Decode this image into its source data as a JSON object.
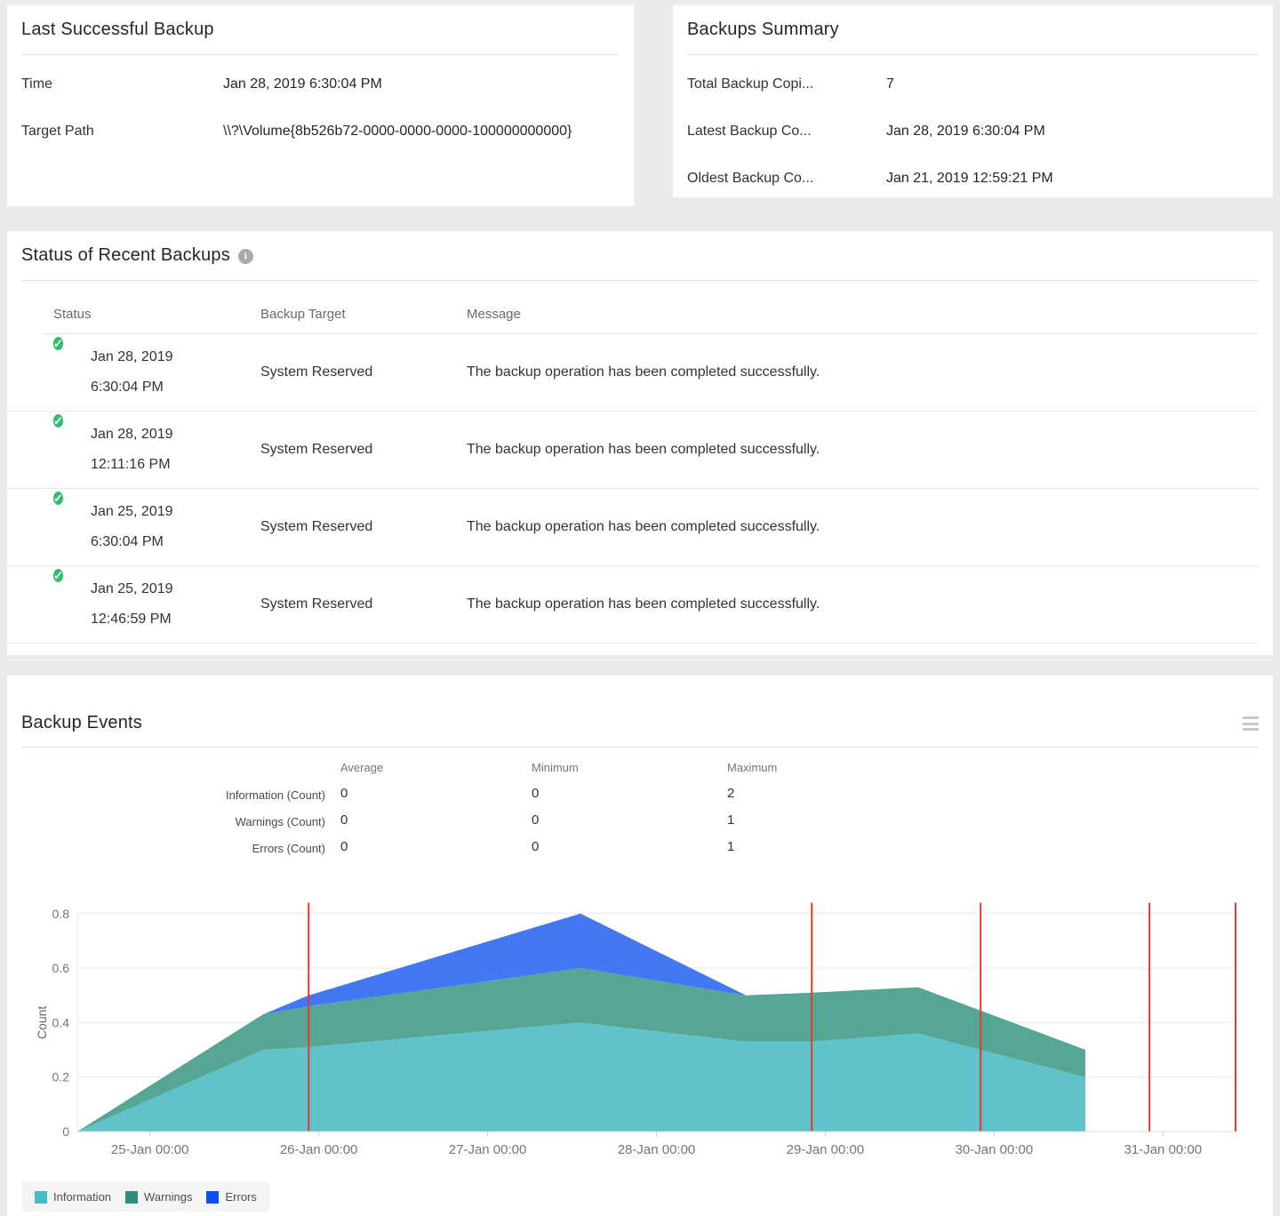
{
  "last_successful_backup": {
    "title": "Last Successful Backup",
    "rows": [
      {
        "label": "Time",
        "value": "Jan 28, 2019 6:30:04 PM"
      },
      {
        "label": "Target Path",
        "value": "\\\\?\\Volume{8b526b72-0000-0000-0000-100000000000}"
      }
    ]
  },
  "backups_summary": {
    "title": "Backups Summary",
    "rows": [
      {
        "label": "Total Backup Copi...",
        "value": "7"
      },
      {
        "label": "Latest Backup Co...",
        "value": "Jan 28, 2019 6:30:04 PM"
      },
      {
        "label": "Oldest Backup Co...",
        "value": "Jan 21, 2019 12:59:21 PM"
      }
    ]
  },
  "status_of_recent_backups": {
    "title": "Status of Recent Backups",
    "info_icon": "i",
    "columns": {
      "status": "Status",
      "target": "Backup Target",
      "message": "Message"
    },
    "check_icon": "✓",
    "rows": [
      {
        "status": "success",
        "date": "Jan 28, 2019",
        "time": "6:30:04 PM",
        "target": "System Reserved",
        "message": "The backup operation has been completed successfully."
      },
      {
        "status": "success",
        "date": "Jan 28, 2019",
        "time": "12:11:16 PM",
        "target": "System Reserved",
        "message": "The backup operation has been completed successfully."
      },
      {
        "status": "success",
        "date": "Jan 25, 2019",
        "time": "6:30:04 PM",
        "target": "System Reserved",
        "message": "The backup operation has been completed successfully."
      },
      {
        "status": "success",
        "date": "Jan 25, 2019",
        "time": "12:46:59 PM",
        "target": "System Reserved",
        "message": "The backup operation has been completed successfully."
      }
    ]
  },
  "backup_events": {
    "title": "Backup Events",
    "stats": {
      "columns": [
        "Average",
        "Minimum",
        "Maximum"
      ],
      "rows": [
        {
          "label": "Information (Count)",
          "average": "0",
          "minimum": "0",
          "maximum": "2"
        },
        {
          "label": "Warnings (Count)",
          "average": "0",
          "minimum": "0",
          "maximum": "1"
        },
        {
          "label": "Errors (Count)",
          "average": "0",
          "minimum": "0",
          "maximum": "1"
        }
      ]
    }
  },
  "chart_data": {
    "type": "area",
    "stacked": true,
    "title": "Backup Events",
    "xlabel": "",
    "ylabel": "Count",
    "ylim": [
      0,
      0.84
    ],
    "y_ticks": [
      0,
      0.2,
      0.4,
      0.6,
      0.8
    ],
    "grid": true,
    "legend_position": "bottom-left",
    "x_domain_days": [
      -0.43,
      6.43
    ],
    "x_ticks": [
      {
        "d": 0,
        "label": "25-Jan 00:00"
      },
      {
        "d": 1,
        "label": "26-Jan 00:00"
      },
      {
        "d": 2,
        "label": "27-Jan 00:00"
      },
      {
        "d": 3,
        "label": "28-Jan 00:00"
      },
      {
        "d": 4,
        "label": "29-Jan 00:00"
      },
      {
        "d": 5,
        "label": "30-Jan 00:00"
      },
      {
        "d": 6,
        "label": "31-Jan 00:00"
      }
    ],
    "x_days": [
      -0.43,
      0.67,
      0.94,
      2.55,
      3.53,
      3.92,
      4.55,
      5.54
    ],
    "series": [
      {
        "name": "Information",
        "color": "#45BDC6",
        "fill": "#60C3CC",
        "values": [
          0,
          0.3,
          0.31,
          0.4,
          0.33,
          0.33,
          0.36,
          0.2
        ]
      },
      {
        "name": "Warnings",
        "color": "#2F8E7B",
        "fill": "#55A794",
        "values": [
          0,
          0.13,
          0.15,
          0.2,
          0.17,
          0.18,
          0.17,
          0.1
        ]
      },
      {
        "name": "Errors",
        "color": "#0C50F2",
        "fill": "#4478F3",
        "values": [
          0,
          0.0,
          0.04,
          0.2,
          0.0,
          0.0,
          0.0,
          0.0
        ]
      }
    ],
    "event_markers_days": [
      0.94,
      3.92,
      4.92,
      5.92,
      6.43
    ],
    "marker_color": "#E23B2E"
  }
}
